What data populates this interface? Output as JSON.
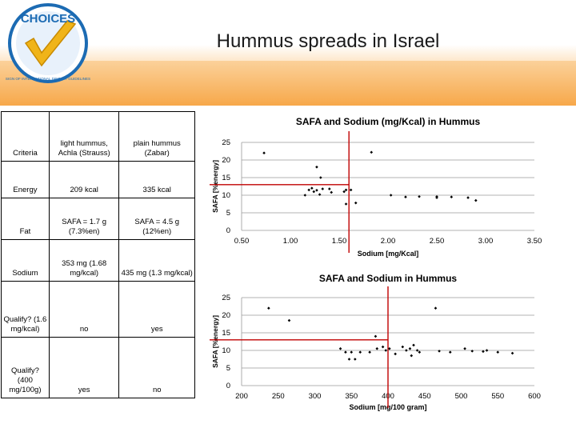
{
  "slide": {
    "title": "Hummus spreads in Israel",
    "logo_text": "CHOICES",
    "logo_arc_text": "SIGN OF INTERNATIONAL DIETARY GUIDELINES",
    "colors": {
      "orange": "#f7a84a",
      "logo_blue": "#1c6bb3",
      "check_yellow": "#f0b419",
      "ref_line": "#c00000"
    }
  },
  "table": {
    "headers": [
      "Criteria",
      "light hummus, Achla (Strauss)",
      "plain hummus (Zabar)"
    ],
    "rows": [
      [
        "Energy",
        "209 kcal",
        "335 kcal"
      ],
      [
        "Fat",
        "SAFA = 1.7 g (7.3%en)",
        "SAFA = 4.5 g (12%en)"
      ],
      [
        "Sodium",
        "353 mg (1.68 mg/kcal)",
        "435 mg (1.3 mg/kcal)"
      ],
      [
        "Qualify? (1.6 mg/kcal)",
        "no",
        "yes"
      ],
      [
        "Qualify? (400 mg/100g)",
        "yes",
        "no"
      ]
    ]
  },
  "chart_data": [
    {
      "type": "scatter",
      "title": "SAFA and Sodium (mg/Kcal) in Hummus",
      "xlabel": "Sodium [mg/Kcal]",
      "ylabel": "SAFA [%energy]",
      "xlim": [
        0.5,
        3.5
      ],
      "ylim": [
        0,
        25
      ],
      "xticks": [
        "0.50",
        "1.00",
        "1.50",
        "2.00",
        "2.50",
        "3.00",
        "3.50"
      ],
      "yticks": [
        "0",
        "5",
        "10",
        "15",
        "20",
        "25"
      ],
      "ref_x": 1.6,
      "ref_y": 13,
      "grid": "horizontal",
      "points": [
        [
          0.73,
          22
        ],
        [
          1.83,
          22.2
        ],
        [
          1.27,
          18
        ],
        [
          1.31,
          15
        ],
        [
          1.15,
          10
        ],
        [
          1.19,
          11.5
        ],
        [
          1.22,
          12
        ],
        [
          1.24,
          11
        ],
        [
          1.27,
          11.4
        ],
        [
          1.3,
          10.2
        ],
        [
          1.33,
          11.8
        ],
        [
          1.4,
          11.8
        ],
        [
          1.42,
          10.8
        ],
        [
          1.55,
          11
        ],
        [
          1.57,
          11.5
        ],
        [
          1.62,
          11.5
        ],
        [
          1.57,
          7.5
        ],
        [
          1.67,
          7.8
        ],
        [
          2.03,
          10
        ],
        [
          2.18,
          9.5
        ],
        [
          2.32,
          9.6
        ],
        [
          2.5,
          9.3
        ],
        [
          2.5,
          9.6
        ],
        [
          2.65,
          9.5
        ],
        [
          2.82,
          9.3
        ],
        [
          2.9,
          8.5
        ]
      ]
    },
    {
      "type": "scatter",
      "title": "SAFA and Sodium in Hummus",
      "xlabel": "Sodium [mg/100 gram]",
      "ylabel": "SAFA [%energy]",
      "xlim": [
        200,
        600
      ],
      "ylim": [
        0,
        25
      ],
      "xticks": [
        "200",
        "250",
        "300",
        "350",
        "400",
        "450",
        "500",
        "550",
        "600"
      ],
      "yticks": [
        "0",
        "5",
        "10",
        "15",
        "20",
        "25"
      ],
      "ref_x": 400,
      "ref_y": 13,
      "grid": "horizontal",
      "points": [
        [
          237,
          22
        ],
        [
          265,
          18.5
        ],
        [
          465,
          22
        ],
        [
          383,
          14
        ],
        [
          335,
          10.5
        ],
        [
          342,
          9.5
        ],
        [
          350,
          9.5
        ],
        [
          347,
          7.5
        ],
        [
          355,
          7.5
        ],
        [
          362,
          9.5
        ],
        [
          375,
          9.5
        ],
        [
          385,
          10.5
        ],
        [
          393,
          11
        ],
        [
          397,
          10
        ],
        [
          402,
          10.5
        ],
        [
          410,
          9
        ],
        [
          420,
          11
        ],
        [
          425,
          10
        ],
        [
          430,
          10.5
        ],
        [
          435,
          11.5
        ],
        [
          432,
          8.5
        ],
        [
          440,
          10
        ],
        [
          443,
          9.5
        ],
        [
          470,
          9.8
        ],
        [
          485,
          9.5
        ],
        [
          505,
          10.5
        ],
        [
          515,
          9.8
        ],
        [
          530,
          9.7
        ],
        [
          535,
          10
        ],
        [
          550,
          9.5
        ],
        [
          570,
          9.2
        ]
      ]
    }
  ]
}
